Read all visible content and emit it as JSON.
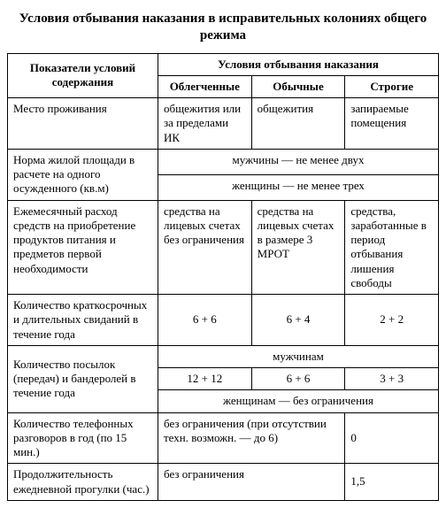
{
  "title": "Условия отбывания наказания в исправительных колониях общего режима",
  "header": {
    "rowLabel": "Показатели условий содержания",
    "condGroup": "Условия отбывания наказания",
    "col1": "Облегченные",
    "col2": "Обычные",
    "col3": "Строгие"
  },
  "rows": {
    "place": {
      "label": "Место проживания",
      "c1": "общежития или за пределами ИК",
      "c2": "общежития",
      "c3": "запираемые помещения"
    },
    "area": {
      "label": "Норма жилой площади в расчете на одного осужденного (кв.м)",
      "men": "мужчины — не менее двух",
      "women": "женщины — не менее трех"
    },
    "spend": {
      "label": "Ежемесячный расход средств на приобретение продуктов питания и предметов первой необходимости",
      "c1": "средства на лицевых счетах без ограничения",
      "c2": "средства на лицевых счетах в размере 3 МРОТ",
      "c3": "средства, заработанные в период отбывания лишения свободы"
    },
    "visits": {
      "label": "Количество краткосрочных и длительных свиданий в течение года",
      "c1": "6 + 6",
      "c2": "6 + 4",
      "c3": "2 + 2"
    },
    "parcels": {
      "label": "Количество посылок (передач) и бандеролей в течение года",
      "menLabel": "мужчинам",
      "c1": "12 + 12",
      "c2": "6 + 6",
      "c3": "3 + 3",
      "womenNote": "женщинам — без ограничения"
    },
    "calls": {
      "label": "Количество телефонных разговоров в год (по 15 мин.)",
      "c12": "без ограничения (при отсутствии техн. возможн. — до 6)",
      "c3": "0"
    },
    "walk": {
      "label": "Продолжительность ежедневной прогулки (час.)",
      "c12": "без ограничения",
      "c3": "1,5"
    }
  }
}
